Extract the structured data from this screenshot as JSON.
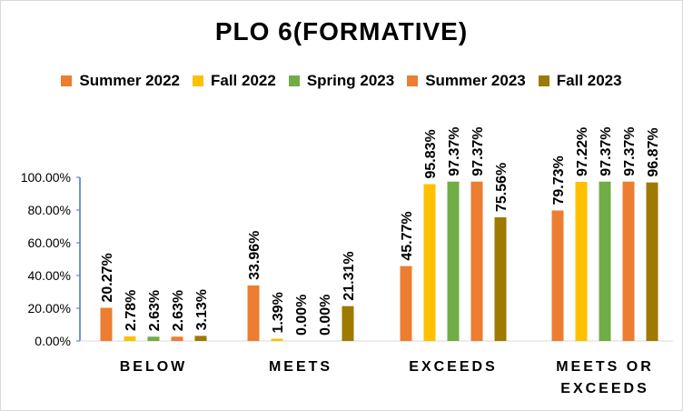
{
  "chart_data": {
    "type": "bar",
    "title": "PLO 6(FORMATIVE)",
    "xlabel": "",
    "ylabel": "",
    "ylim": [
      0,
      100
    ],
    "yticks": [
      "0.00%",
      "20.00%",
      "40.00%",
      "60.00%",
      "80.00%",
      "100.00%"
    ],
    "grid": false,
    "legend_position": "top",
    "categories": [
      "BELOW",
      "MEETS",
      "EXCEEDS",
      "MEETS OR EXCEEDS"
    ],
    "series": [
      {
        "name": "Summer 2022",
        "color": "#ED7D31",
        "values": [
          20.27,
          33.96,
          45.77,
          79.73
        ],
        "labels": [
          "20.27%",
          "33.96%",
          "45.77%",
          "79.73%"
        ]
      },
      {
        "name": "Fall 2022",
        "color": "#FFC000",
        "values": [
          2.78,
          1.39,
          95.83,
          97.22
        ],
        "labels": [
          "2.78%",
          "1.39%",
          "95.83%",
          "97.22%"
        ]
      },
      {
        "name": "Spring 2023",
        "color": "#70AD47",
        "values": [
          2.63,
          0.0,
          97.37,
          97.37
        ],
        "labels": [
          "2.63%",
          "0.00%",
          "97.37%",
          "97.37%"
        ]
      },
      {
        "name": "Summer 2023",
        "color": "#ED7D31",
        "values": [
          2.63,
          0.0,
          97.37,
          97.37
        ],
        "labels": [
          "2.63%",
          "0.00%",
          "97.37%",
          "97.37%"
        ]
      },
      {
        "name": "Fall 2023",
        "color": "#9E7A00",
        "values": [
          3.13,
          21.31,
          75.56,
          96.87
        ],
        "labels": [
          "3.13%",
          "21.31%",
          "75.56%",
          "96.87%"
        ]
      }
    ]
  }
}
